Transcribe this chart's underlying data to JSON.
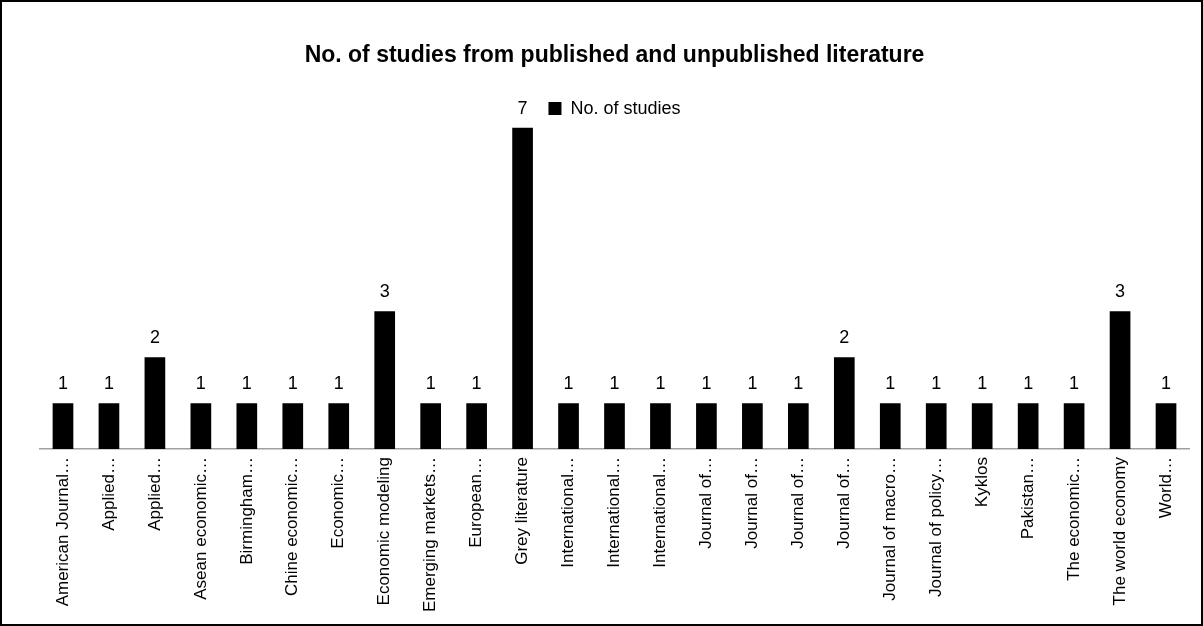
{
  "chart_data": {
    "type": "bar",
    "title": "No. of studies from published and unpublished literature",
    "categories": [
      "American Journal…",
      "Applied…",
      "Applied…",
      "Asean economic…",
      "Birmingham…",
      "Chine economic…",
      "Economic…",
      "Economic modeling",
      "Emerging markets…",
      "European…",
      "Grey literature",
      "International…",
      "International…",
      "International…",
      "Journal of…",
      "Journal of…",
      "Journal of…",
      "Journal of…",
      "Journal of macro…",
      "Journal of policy…",
      "Kyklos",
      "Pakistan…",
      "The economic…",
      "The world economy",
      "World…"
    ],
    "series": [
      {
        "name": "No. of studies",
        "color": "#000000",
        "values": [
          1,
          1,
          2,
          1,
          1,
          1,
          1,
          3,
          1,
          1,
          7,
          1,
          1,
          1,
          1,
          1,
          1,
          2,
          1,
          1,
          1,
          1,
          1,
          3,
          1
        ]
      }
    ],
    "data_labels": true,
    "legend": "top",
    "grid": false
  }
}
